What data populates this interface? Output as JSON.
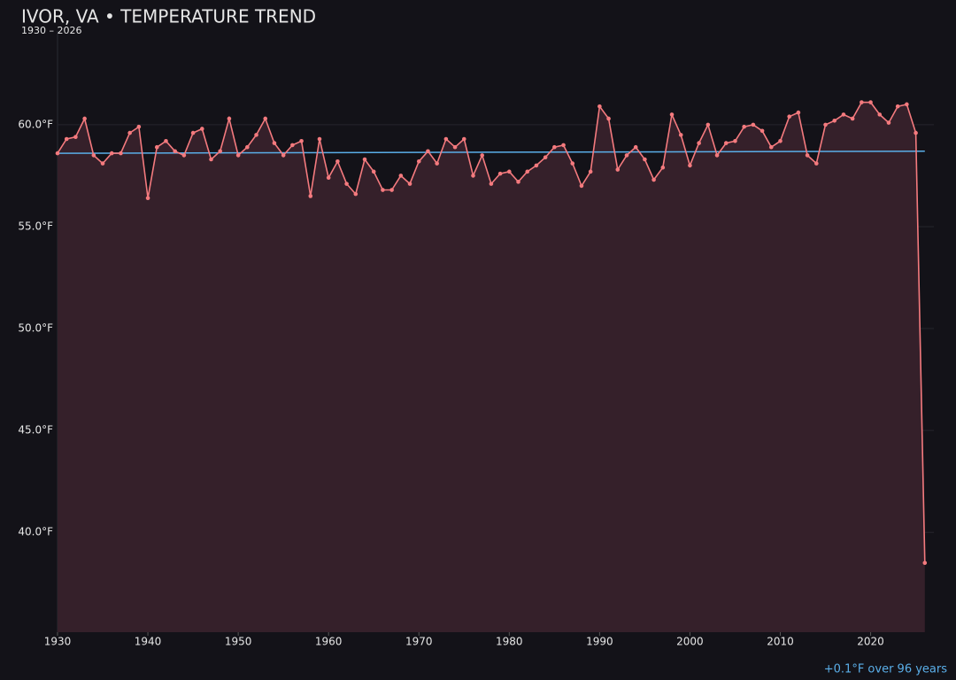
{
  "chart_data": {
    "type": "line",
    "title": "IVOR, VA • TEMPERATURE TREND",
    "subtitle": "1930 – 2026",
    "annotation": "+0.1°F over 96 years",
    "x": [
      1930,
      1931,
      1932,
      1933,
      1934,
      1935,
      1936,
      1937,
      1938,
      1939,
      1940,
      1941,
      1942,
      1943,
      1944,
      1945,
      1946,
      1947,
      1948,
      1949,
      1950,
      1951,
      1952,
      1953,
      1954,
      1955,
      1956,
      1957,
      1958,
      1959,
      1960,
      1961,
      1962,
      1963,
      1964,
      1965,
      1966,
      1967,
      1968,
      1969,
      1970,
      1971,
      1972,
      1973,
      1974,
      1975,
      1976,
      1977,
      1978,
      1979,
      1980,
      1981,
      1982,
      1983,
      1984,
      1985,
      1986,
      1987,
      1988,
      1989,
      1990,
      1991,
      1992,
      1993,
      1994,
      1995,
      1996,
      1997,
      1998,
      1999,
      2000,
      2001,
      2002,
      2003,
      2004,
      2005,
      2006,
      2007,
      2008,
      2009,
      2010,
      2011,
      2012,
      2013,
      2014,
      2015,
      2016,
      2017,
      2018,
      2019,
      2020,
      2021,
      2022,
      2023,
      2024,
      2025,
      2026
    ],
    "series": [
      {
        "color": "#f47a7e",
        "values": [
          58.6,
          59.3,
          59.4,
          60.3,
          58.5,
          58.1,
          58.6,
          58.6,
          59.6,
          59.9,
          56.4,
          58.9,
          59.2,
          58.7,
          58.5,
          59.6,
          59.8,
          58.3,
          58.7,
          60.3,
          58.5,
          58.9,
          59.5,
          60.3,
          59.1,
          58.5,
          59.0,
          59.2,
          56.5,
          59.3,
          57.4,
          58.2,
          57.1,
          56.6,
          58.3,
          57.7,
          56.8,
          56.8,
          57.5,
          57.1,
          58.2,
          58.7,
          58.1,
          59.3,
          58.9,
          59.3,
          57.5,
          58.5,
          57.1,
          57.6,
          57.7,
          57.2,
          57.7,
          58.0,
          58.4,
          58.9,
          59.0,
          58.1,
          57.0,
          57.7,
          60.9,
          60.3,
          57.8,
          58.5,
          58.9,
          58.3,
          57.3,
          57.9,
          60.5,
          59.5,
          58.0,
          59.1,
          60.0,
          58.5,
          59.1,
          59.2,
          59.9,
          60.0,
          59.7,
          58.9,
          59.2,
          60.4,
          60.6,
          58.5,
          58.1,
          60.0,
          60.2,
          60.5,
          60.3,
          61.1,
          61.1,
          60.5,
          60.1,
          60.9,
          61.0,
          59.6,
          38.5
        ]
      }
    ],
    "trend": {
      "color": "#5aaee8",
      "x": [
        1930,
        2026
      ],
      "values": [
        58.6,
        58.7
      ]
    },
    "xlim": [
      1930,
      2027
    ],
    "ylim": [
      35.1,
      64.6
    ],
    "xticks": [
      1930,
      1940,
      1950,
      1960,
      1970,
      1980,
      1990,
      2000,
      2010,
      2020
    ],
    "yticks": [
      {
        "value": 40,
        "label": "40.0°F"
      },
      {
        "value": 45,
        "label": "45.0°F"
      },
      {
        "value": 50,
        "label": "50.0°F"
      },
      {
        "value": 55,
        "label": "55.0°F"
      },
      {
        "value": 60,
        "label": "60.0°F"
      }
    ],
    "grid": true,
    "fill": "#35202a"
  }
}
